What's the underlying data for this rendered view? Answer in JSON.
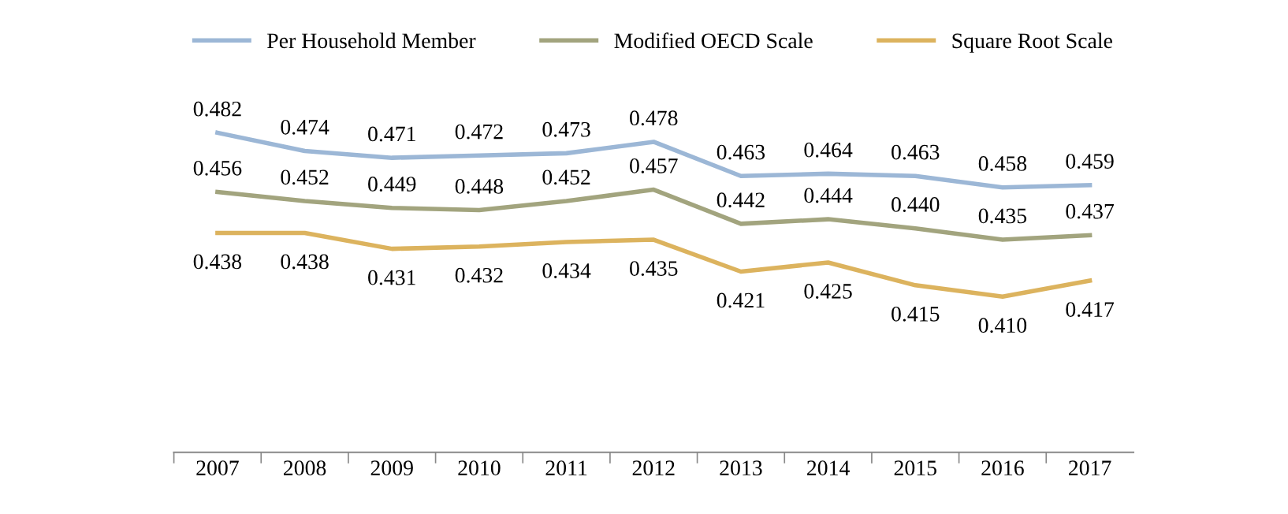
{
  "chart_data": {
    "type": "line",
    "categories": [
      "2007",
      "2008",
      "2009",
      "2010",
      "2011",
      "2012",
      "2013",
      "2014",
      "2015",
      "2016",
      "2017"
    ],
    "series": [
      {
        "name": "Per Household Member",
        "color": "#9cb7d6",
        "values": [
          0.482,
          0.474,
          0.471,
          0.472,
          0.473,
          0.478,
          0.463,
          0.464,
          0.463,
          0.458,
          0.459
        ],
        "value_labels": [
          "0.482",
          "0.474",
          "0.471",
          "0.472",
          "0.473",
          "0.478",
          "0.463",
          "0.464",
          "0.463",
          "0.458",
          "0.459"
        ]
      },
      {
        "name": "Modified OECD Scale",
        "color": "#a2a47e",
        "values": [
          0.456,
          0.452,
          0.449,
          0.448,
          0.452,
          0.457,
          0.442,
          0.444,
          0.44,
          0.435,
          0.437
        ],
        "value_labels": [
          "0.456",
          "0.452",
          "0.449",
          "0.448",
          "0.452",
          "0.457",
          "0.442",
          "0.444",
          "0.440",
          "0.435",
          "0.437"
        ]
      },
      {
        "name": "Square Root Scale",
        "color": "#dcb35e",
        "values": [
          0.438,
          0.438,
          0.431,
          0.432,
          0.434,
          0.435,
          0.421,
          0.425,
          0.415,
          0.41,
          0.417
        ],
        "value_labels": [
          "0.438",
          "0.438",
          "0.431",
          "0.432",
          "0.434",
          "0.435",
          "0.421",
          "0.425",
          "0.415",
          "0.410",
          "0.417"
        ]
      }
    ],
    "legend": "top",
    "marker": "none",
    "line_style": "solid"
  }
}
